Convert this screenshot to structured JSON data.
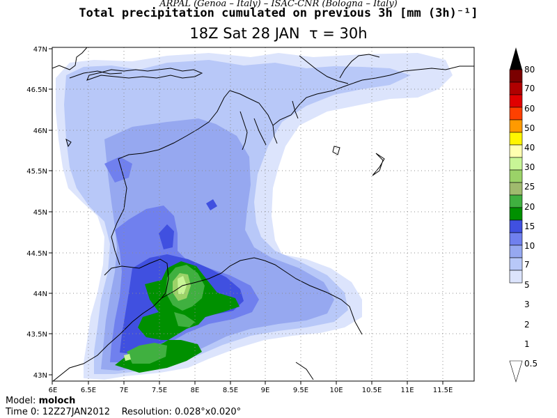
{
  "header": {
    "agency": "ARPAL (Genoa – Italy)   –   ISAC-CNR (Bologna – Italy)",
    "title": "Total precipitation cumulated on previous 3h [mm (3h)⁻¹]",
    "valid": "18Z Sat 28 JAN",
    "tau": "τ = 30h"
  },
  "axes": {
    "lon_labels": [
      "6E",
      "6.5E",
      "7E",
      "7.5E",
      "8E",
      "8.5E",
      "9E",
      "9.5E",
      "10E",
      "10.5E",
      "11E",
      "11.5E"
    ],
    "lat_labels": [
      "47N",
      "46.5N",
      "46N",
      "45.5N",
      "45N",
      "44.5N",
      "44N",
      "43.5N",
      "43N"
    ],
    "lon_range": [
      6,
      12
    ],
    "lat_range": [
      42.95,
      47
    ]
  },
  "colorbar": {
    "levels": [
      "80",
      "70",
      "60",
      "50",
      "40",
      "30",
      "25",
      "20",
      "15",
      "10",
      "7",
      "5",
      "3",
      "2",
      "1",
      "0.5"
    ],
    "colors": [
      "#000000",
      "#7a0000",
      "#b00000",
      "#e00000",
      "#ff4000",
      "#ff9a00",
      "#fff500",
      "#ffffb0",
      "#c8f596",
      "#9bd268",
      "#a0ba6e",
      "#40b040",
      "#009000",
      "#4050e0",
      "#7080ee",
      "#96a8f0",
      "#b8c8f8",
      "#dce4fc",
      "#ffffff"
    ]
  },
  "footer": {
    "model_label": "Model:",
    "model_value": "moloch",
    "time_label": "Time 0:",
    "time_value": "12Z27JAN2012",
    "res_label": "Resolution:",
    "res_value": "0.028°x0.020°"
  }
}
